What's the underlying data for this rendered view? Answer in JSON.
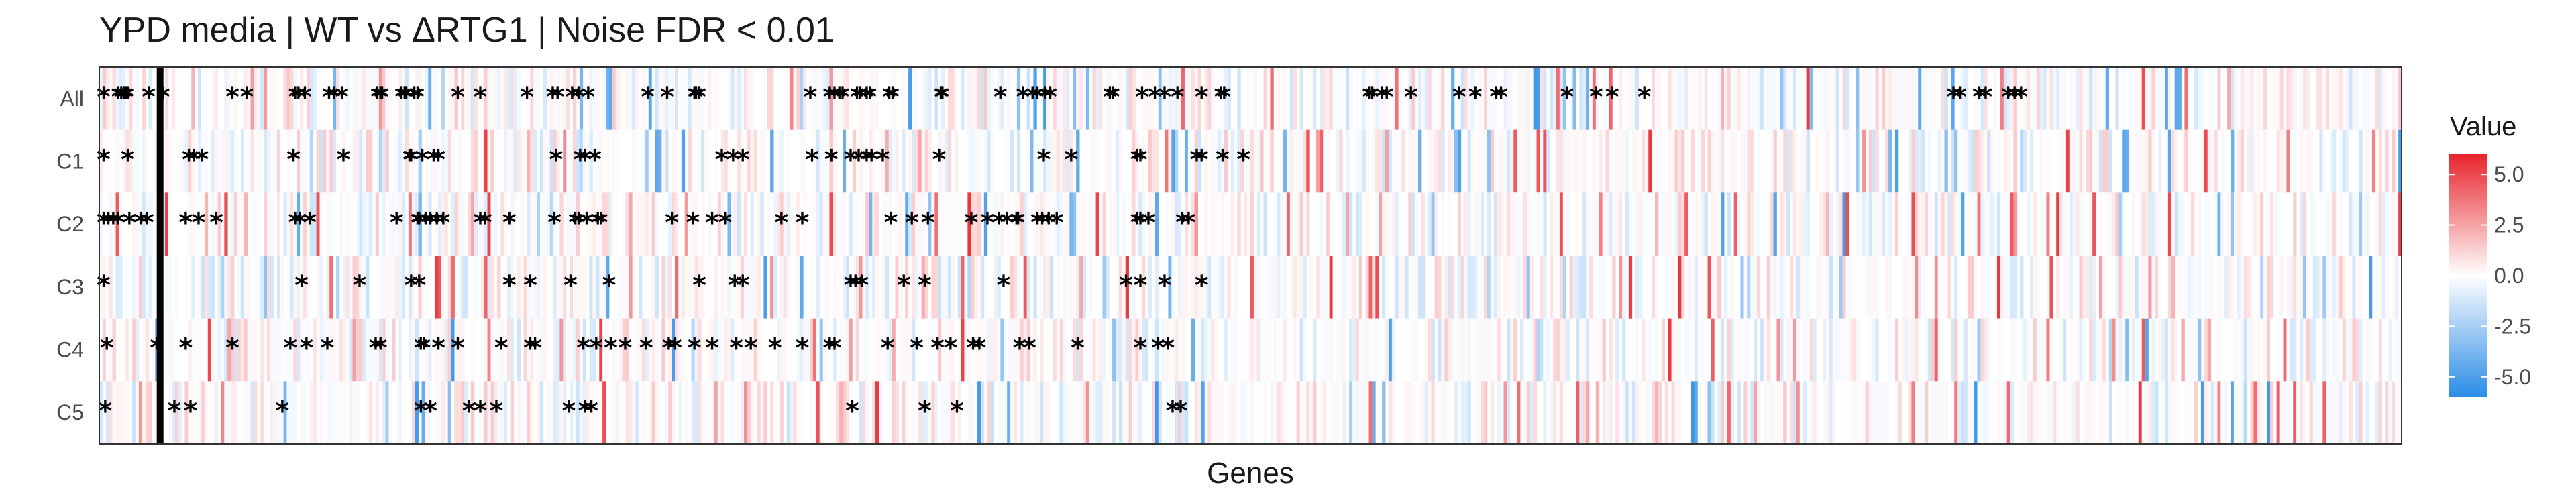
{
  "chart_data": {
    "type": "heatmap",
    "title": "YPD media | WT vs ΔRTG1 | Noise FDR < 0.01",
    "xlabel": "Genes",
    "ylabel": "",
    "rows": [
      "All",
      "C1",
      "C2",
      "C3",
      "C4",
      "C5"
    ],
    "gene_count": 700,
    "highlight_gene_index": 18,
    "colors": {
      "low": "#2b8ce6",
      "mid": "#ffffff",
      "high": "#e8242b",
      "marker": "#000000",
      "highlight": "#000000"
    },
    "legend": {
      "title": "Value",
      "position": "right",
      "range": [
        -6,
        6
      ],
      "ticks": [
        5.0,
        2.5,
        0.0,
        -2.5,
        -5.0
      ],
      "tick_labels": [
        "5.0",
        "2.5",
        "0.0",
        "-2.5",
        "-5.0"
      ]
    },
    "significance_marker": "*",
    "significant": {
      "All": [
        1,
        10,
        12,
        14,
        15,
        16,
        29,
        38,
        81,
        90,
        120,
        122,
        126,
        141,
        144,
        149,
        171,
        173,
        174,
        186,
        188,
        189,
        194,
        196,
        221,
        235,
        264,
        280,
        283,
        292,
        296,
        302,
        339,
        351,
        368,
        369,
        371,
        440,
        452,
        455,
        458,
        460,
        469,
        471,
        475,
        477,
        489,
        491,
        521,
        522,
        558,
        572,
        578,
        581,
        586,
        589,
        626,
        628,
        646,
        654,
        660,
        668,
        683,
        695,
        697,
        787,
        789,
        795,
        798,
        813,
        843,
        853,
        866,
        869,
        910,
        928,
        938,
        958,
        1150,
        1154,
        1166,
        1170,
        1184,
        1188,
        1192
      ],
      "C1": [
        1,
        16,
        54,
        57,
        62,
        119,
        150,
        191,
        192,
        199,
        206,
        209,
        282,
        297,
        300,
        306,
        385,
        392,
        398,
        441,
        453,
        465,
        470,
        475,
        478,
        485,
        520,
        585,
        602,
        643,
        645,
        680,
        683,
        696,
        709
      ],
      "C2": [
        1,
        4,
        7,
        10,
        17,
        24,
        28,
        52,
        60,
        71,
        120,
        123,
        129,
        183,
        196,
        197,
        201,
        204,
        208,
        212,
        235,
        238,
        253,
        281,
        294,
        296,
        301,
        308,
        310,
        354,
        367,
        379,
        387,
        422,
        435,
        490,
        503,
        513,
        540,
        550,
        557,
        562,
        568,
        569,
        581,
        584,
        588,
        593,
        643,
        645,
        650,
        671,
        675
      ],
      "C3": [
        1,
        124,
        160,
        192,
        197,
        253,
        266,
        291,
        315,
        371,
        393,
        398,
        465,
        468,
        472,
        498,
        511,
        560,
        636,
        645,
        660,
        683
      ],
      "C4": [
        3,
        34,
        52,
        81,
        117,
        127,
        140,
        170,
        173,
        198,
        200,
        209,
        221,
        248,
        266,
        269,
        299,
        307,
        316,
        325,
        338,
        352,
        356,
        368,
        379,
        394,
        403,
        418,
        435,
        452,
        455,
        488,
        506,
        519,
        527,
        541,
        545,
        570,
        576,
        606,
        645,
        656,
        662
      ],
      "C5": [
        2,
        45,
        55,
        112,
        198,
        204,
        228,
        235,
        245,
        290,
        300,
        304,
        466,
        511,
        531,
        665,
        670
      ]
    }
  }
}
